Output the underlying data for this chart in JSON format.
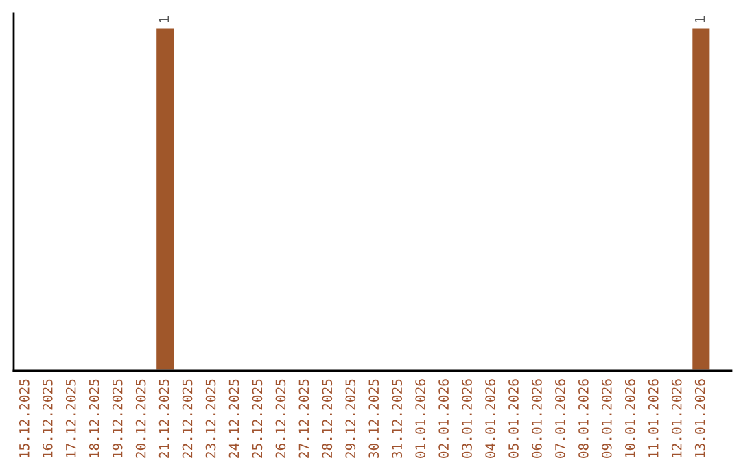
{
  "chart_data": {
    "type": "bar",
    "categories": [
      "15.12.2025",
      "16.12.2025",
      "17.12.2025",
      "18.12.2025",
      "19.12.2025",
      "20.12.2025",
      "21.12.2025",
      "22.12.2025",
      "23.12.2025",
      "24.12.2025",
      "25.12.2025",
      "26.12.2025",
      "27.12.2025",
      "28.12.2025",
      "29.12.2025",
      "30.12.2025",
      "31.12.2025",
      "01.01.2026",
      "02.01.2026",
      "03.01.2026",
      "04.01.2026",
      "05.01.2026",
      "06.01.2026",
      "07.01.2026",
      "08.01.2026",
      "09.01.2026",
      "10.01.2026",
      "11.01.2026",
      "12.01.2026",
      "13.01.2026"
    ],
    "values": [
      0,
      0,
      0,
      0,
      0,
      0,
      1,
      0,
      0,
      0,
      0,
      0,
      0,
      0,
      0,
      0,
      0,
      0,
      0,
      0,
      0,
      0,
      0,
      0,
      0,
      0,
      0,
      0,
      0,
      1
    ],
    "value_labels": [
      null,
      null,
      null,
      null,
      null,
      null,
      "1",
      null,
      null,
      null,
      null,
      null,
      null,
      null,
      null,
      null,
      null,
      null,
      null,
      null,
      null,
      null,
      null,
      null,
      null,
      null,
      null,
      null,
      null,
      "1"
    ],
    "color": "#a0572a",
    "tick_labels": "x",
    "grid": false,
    "legend": false
  }
}
